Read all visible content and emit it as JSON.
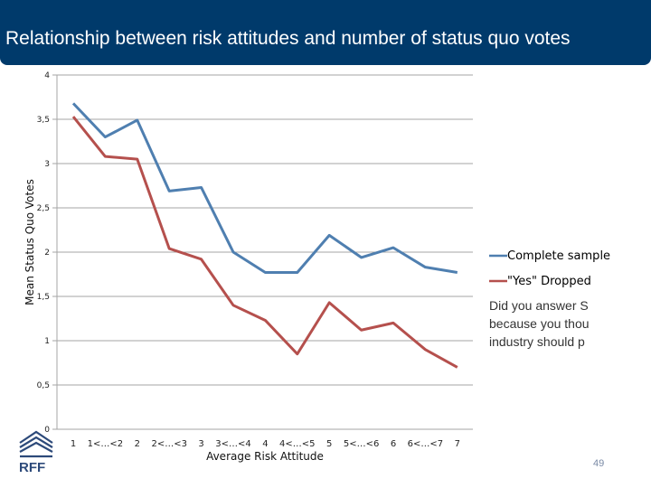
{
  "slide": {
    "title": "Relationship between risk attitudes and number of status quo votes",
    "page_number": "49",
    "logo_text": "RFF",
    "note_lines": [
      "Did you answer S",
      " because you thou",
      " industry should p"
    ]
  },
  "colors": {
    "title_bar": "#003a6b",
    "complete_sample": "#4f7fb0",
    "yes_dropped": "#b5504d",
    "grid": "#a6a6a6"
  },
  "chart_data": {
    "type": "line",
    "title": "",
    "xlabel": "Average Risk Attitude",
    "ylabel": "Mean Status Quo Votes",
    "ylim": [
      0,
      4
    ],
    "yticks": [
      "0",
      "0,5",
      "1",
      "1,5",
      "2",
      "2,5",
      "3",
      "3,5",
      "4"
    ],
    "grid": "horizontal",
    "legend": "right",
    "categories": [
      "1",
      "1<…<2",
      "2",
      "2<…<3",
      "3",
      "3<…<4",
      "4",
      "4<…<5",
      "5",
      "5<…<6",
      "6",
      "6<…<7",
      "7"
    ],
    "series": [
      {
        "name": "Complete sample",
        "values": [
          3.68,
          3.3,
          3.49,
          2.69,
          2.73,
          2.0,
          1.77,
          1.77,
          2.19,
          1.94,
          2.05,
          1.83,
          1.77
        ]
      },
      {
        "name": "\"Yes\" Dropped",
        "values": [
          3.53,
          3.08,
          3.05,
          2.04,
          1.92,
          1.4,
          1.23,
          0.85,
          1.43,
          1.12,
          1.2,
          0.9,
          0.7
        ]
      }
    ]
  }
}
